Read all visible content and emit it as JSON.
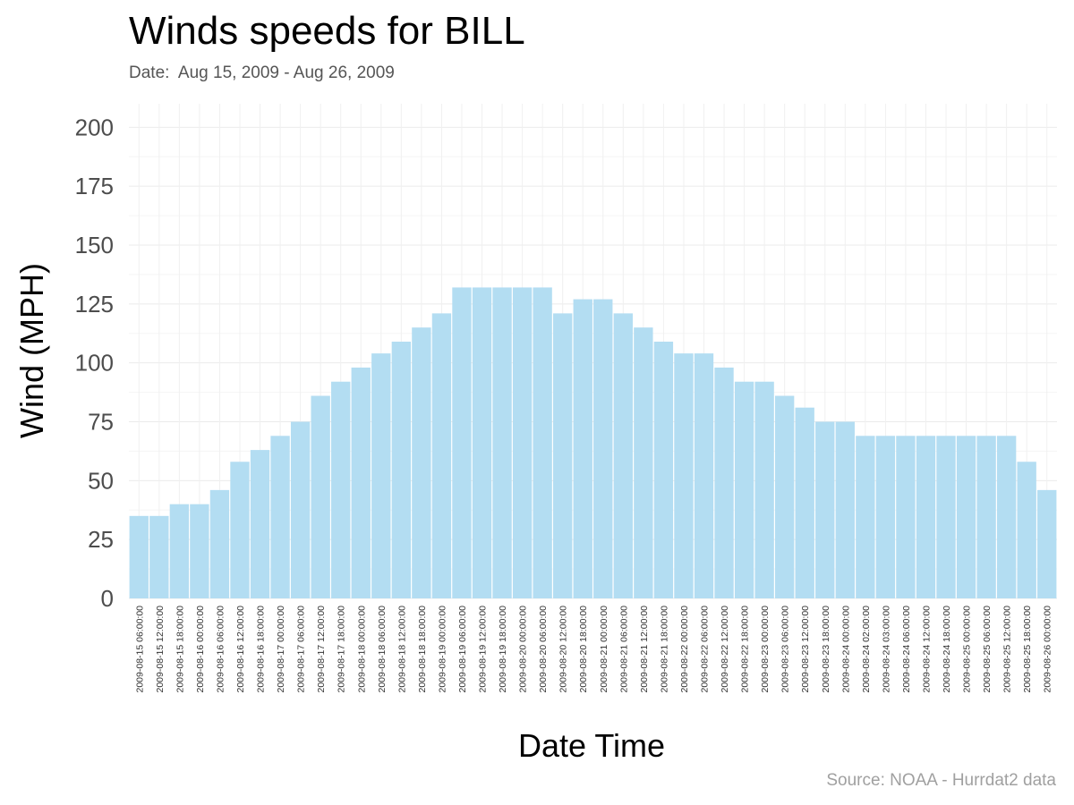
{
  "chart_data": {
    "type": "bar",
    "title": "Winds speeds for BILL",
    "subtitle": "Date:  Aug 15, 2009 - Aug 26, 2009",
    "xlabel": "Date Time",
    "ylabel": "Wind (MPH)",
    "caption": "Source: NOAA - Hurrdat2 data",
    "ylim": [
      0,
      210
    ],
    "yticks": [
      0,
      25,
      50,
      75,
      100,
      125,
      150,
      175,
      200
    ],
    "grid": true,
    "bar_color": "#b3ddf2",
    "categories": [
      "2009-08-15 06:00:00",
      "2009-08-15 12:00:00",
      "2009-08-15 18:00:00",
      "2009-08-16 00:00:00",
      "2009-08-16 06:00:00",
      "2009-08-16 12:00:00",
      "2009-08-16 18:00:00",
      "2009-08-17 00:00:00",
      "2009-08-17 06:00:00",
      "2009-08-17 12:00:00",
      "2009-08-17 18:00:00",
      "2009-08-18 00:00:00",
      "2009-08-18 06:00:00",
      "2009-08-18 12:00:00",
      "2009-08-18 18:00:00",
      "2009-08-19 00:00:00",
      "2009-08-19 06:00:00",
      "2009-08-19 12:00:00",
      "2009-08-19 18:00:00",
      "2009-08-20 00:00:00",
      "2009-08-20 06:00:00",
      "2009-08-20 12:00:00",
      "2009-08-20 18:00:00",
      "2009-08-21 00:00:00",
      "2009-08-21 06:00:00",
      "2009-08-21 12:00:00",
      "2009-08-21 18:00:00",
      "2009-08-22 00:00:00",
      "2009-08-22 06:00:00",
      "2009-08-22 12:00:00",
      "2009-08-22 18:00:00",
      "2009-08-23 00:00:00",
      "2009-08-23 06:00:00",
      "2009-08-23 12:00:00",
      "2009-08-23 18:00:00",
      "2009-08-24 00:00:00",
      "2009-08-24 02:00:00",
      "2009-08-24 03:00:00",
      "2009-08-24 06:00:00",
      "2009-08-24 12:00:00",
      "2009-08-24 18:00:00",
      "2009-08-25 00:00:00",
      "2009-08-25 06:00:00",
      "2009-08-25 12:00:00",
      "2009-08-25 18:00:00",
      "2009-08-26 00:00:00"
    ],
    "values": [
      35,
      35,
      40,
      40,
      46,
      58,
      63,
      69,
      75,
      86,
      92,
      98,
      104,
      109,
      115,
      121,
      132,
      132,
      132,
      132,
      132,
      121,
      127,
      127,
      121,
      115,
      109,
      104,
      104,
      98,
      92,
      92,
      86,
      81,
      75,
      75,
      69,
      69,
      69,
      69,
      69,
      69,
      69,
      69,
      58,
      46
    ]
  }
}
